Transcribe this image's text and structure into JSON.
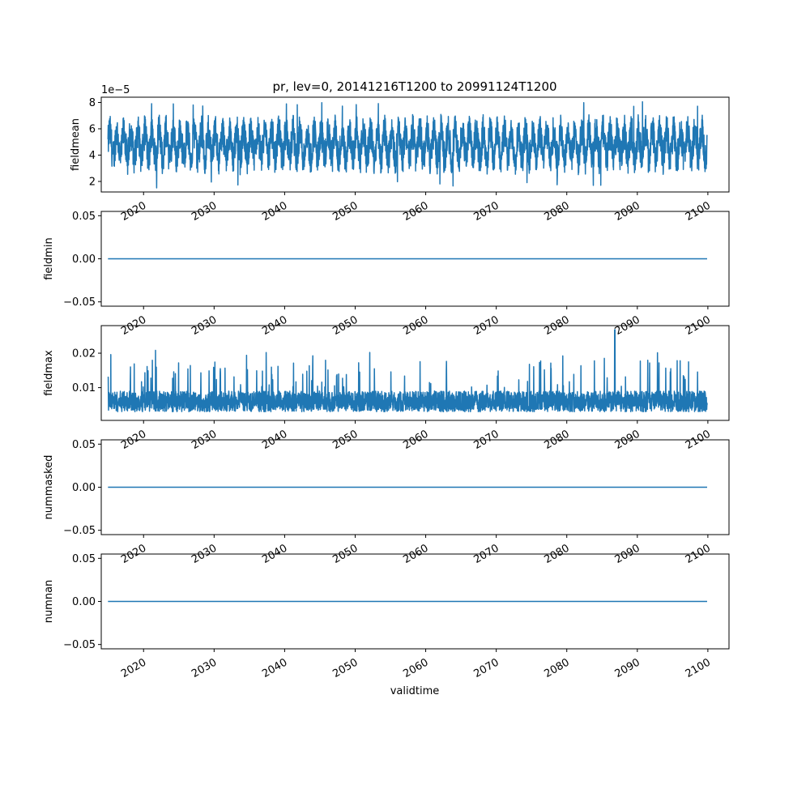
{
  "chart_data": {
    "type": "line",
    "title": "pr, lev=0, 20141216T1200 to 20991124T1200",
    "xlabel": "validtime",
    "x_range": [
      "2014-12-16",
      "2099-11-24"
    ],
    "xticks": [
      "2020",
      "2030",
      "2040",
      "2050",
      "2060",
      "2070",
      "2080",
      "2090",
      "2100"
    ],
    "line_color": "#1f77b4",
    "panels": [
      {
        "ylabel": "fieldmean",
        "offset_text": "1e−5",
        "ylim": [
          1.2,
          8.4
        ],
        "yticks": [
          "2",
          "4",
          "6",
          "8"
        ],
        "pattern": "noisy",
        "mean": 4.8,
        "low": 1.5,
        "high": 8.1,
        "annual_cycle": 1.0
      },
      {
        "ylabel": "fieldmin",
        "ylim": [
          -0.055,
          0.055
        ],
        "yticks": [
          "−0.05",
          "0.00",
          "0.05"
        ],
        "pattern": "constant",
        "value": 0.0
      },
      {
        "ylabel": "fieldmax",
        "ylim": [
          0.0005,
          0.028
        ],
        "yticks": [
          "0.01",
          "0.02"
        ],
        "pattern": "spiky",
        "mean": 0.006,
        "low": 0.002,
        "high": 0.0268
      },
      {
        "ylabel": "nummasked",
        "ylim": [
          -0.055,
          0.055
        ],
        "yticks": [
          "−0.05",
          "0.00",
          "0.05"
        ],
        "pattern": "constant",
        "value": 0.0
      },
      {
        "ylabel": "numnan",
        "ylim": [
          -0.055,
          0.055
        ],
        "yticks": [
          "−0.05",
          "0.00",
          "0.05"
        ],
        "pattern": "constant",
        "value": 0.0
      }
    ]
  }
}
